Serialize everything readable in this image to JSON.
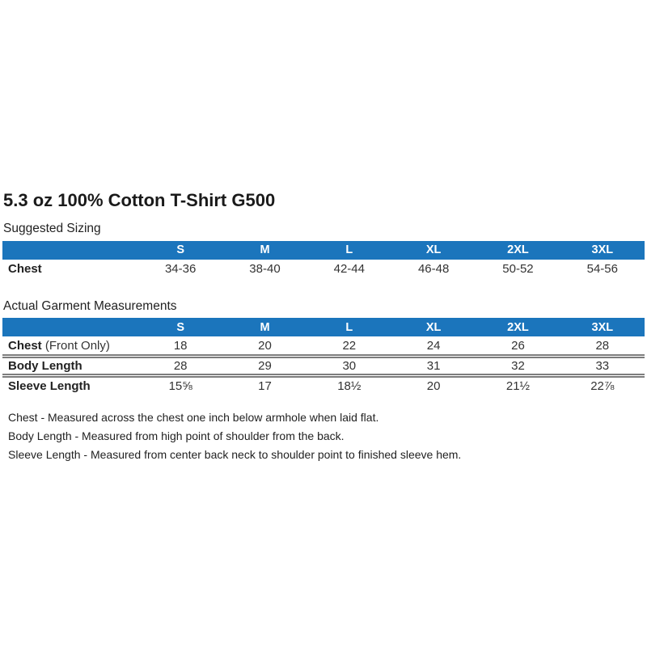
{
  "page": {
    "title": "5.3 oz 100% Cotton T-Shirt G500",
    "colors": {
      "header_bg": "#1B75BC",
      "header_text": "#FFFFFF",
      "body_text": "#333333"
    }
  },
  "suggested": {
    "label": "Suggested Sizing",
    "columns": [
      "S",
      "M",
      "L",
      "XL",
      "2XL",
      "3XL"
    ],
    "rows": [
      {
        "label": "Chest",
        "label_suffix": "",
        "values": [
          "34-36",
          "38-40",
          "42-44",
          "46-48",
          "50-52",
          "54-56"
        ]
      }
    ]
  },
  "actual": {
    "label": "Actual Garment Measurements",
    "columns": [
      "S",
      "M",
      "L",
      "XL",
      "2XL",
      "3XL"
    ],
    "rows": [
      {
        "label": "Chest",
        "label_suffix": " (Front Only)",
        "values": [
          "18",
          "20",
          "22",
          "24",
          "26",
          "28"
        ]
      },
      {
        "label": "Body Length",
        "label_suffix": "",
        "values": [
          "28",
          "29",
          "30",
          "31",
          "32",
          "33"
        ]
      },
      {
        "label": "Sleeve Length",
        "label_suffix": "",
        "values": [
          "15⅝",
          "17",
          "18½",
          "20",
          "21½",
          "22⅞"
        ]
      }
    ]
  },
  "notes": [
    "Chest - Measured across the chest one inch below armhole when laid flat.",
    "Body Length - Measured from high point of shoulder from the back.",
    "Sleeve Length - Measured from center back neck to shoulder point to finished sleeve hem."
  ]
}
